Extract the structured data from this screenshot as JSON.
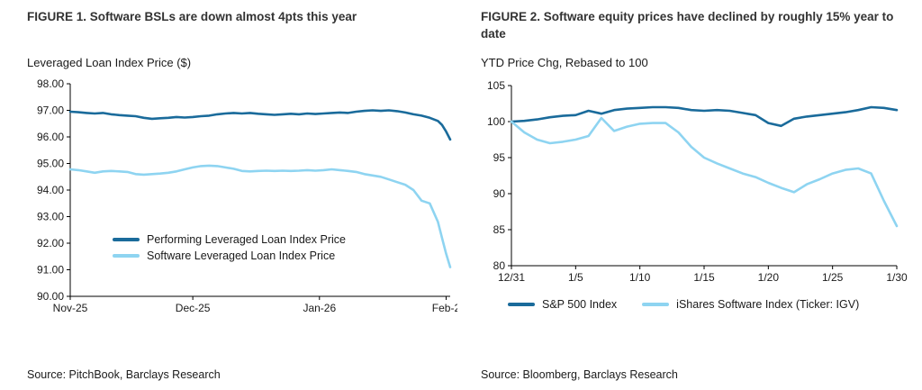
{
  "colors": {
    "dark_blue": "#1a6b9b",
    "light_blue": "#8ed4f1",
    "axis": "#000000",
    "text": "#1a1a1a"
  },
  "figures": [
    {
      "label": "FIGURE 1.",
      "title": "Software BSLs are down almost 4pts this year",
      "axis_title": "Leveraged Loan Index Price ($)",
      "source": "Source: PitchBook, Barclays Research"
    },
    {
      "label": "FIGURE 2.",
      "title": "Software equity prices have declined by roughly 15% year to date",
      "axis_title": "YTD Price Chg, Rebased to 100",
      "source": "Source: Bloomberg, Barclays Research"
    }
  ],
  "chart_data": [
    {
      "type": "line",
      "title": "FIGURE 1. Software BSLs are down almost 4pts this year",
      "ylabel": "Leveraged Loan Index Price ($)",
      "ylim": [
        90,
        98
      ],
      "ytick_step": 1,
      "ytick_decimals": 2,
      "xlim": [
        0,
        93
      ],
      "xticks": [
        {
          "x": 0,
          "label": "Nov-25"
        },
        {
          "x": 30,
          "label": "Dec-25"
        },
        {
          "x": 61,
          "label": "Jan-26"
        },
        {
          "x": 92,
          "label": "Feb-2"
        }
      ],
      "grid": false,
      "legend_position": "inside-lower-left",
      "series": [
        {
          "name": "Performing Leveraged Loan Index Price",
          "color": "dark",
          "x": [
            0,
            2,
            4,
            6,
            8,
            10,
            12,
            14,
            16,
            18,
            20,
            22,
            24,
            26,
            28,
            30,
            32,
            34,
            36,
            38,
            40,
            42,
            44,
            46,
            48,
            50,
            52,
            54,
            56,
            58,
            60,
            62,
            64,
            66,
            68,
            70,
            72,
            74,
            76,
            78,
            80,
            82,
            84,
            86,
            88,
            90,
            91,
            92,
            93
          ],
          "y": [
            96.95,
            96.93,
            96.9,
            96.88,
            96.9,
            96.85,
            96.82,
            96.8,
            96.78,
            96.72,
            96.68,
            96.7,
            96.72,
            96.75,
            96.73,
            96.75,
            96.78,
            96.8,
            96.85,
            96.88,
            96.9,
            96.88,
            96.9,
            96.87,
            96.85,
            96.83,
            96.85,
            96.87,
            96.85,
            96.88,
            96.86,
            96.88,
            96.9,
            96.92,
            96.9,
            96.95,
            96.98,
            97.0,
            96.98,
            97.0,
            96.97,
            96.92,
            96.85,
            96.8,
            96.72,
            96.6,
            96.45,
            96.2,
            95.9
          ]
        },
        {
          "name": "Software Leveraged Loan Index Price",
          "color": "light",
          "x": [
            0,
            2,
            4,
            6,
            8,
            10,
            12,
            14,
            16,
            18,
            20,
            22,
            24,
            26,
            28,
            30,
            32,
            34,
            36,
            38,
            40,
            42,
            44,
            46,
            48,
            50,
            52,
            54,
            56,
            58,
            60,
            62,
            64,
            66,
            68,
            70,
            72,
            74,
            76,
            78,
            80,
            82,
            84,
            86,
            88,
            90,
            91,
            92,
            93
          ],
          "y": [
            94.78,
            94.75,
            94.7,
            94.65,
            94.7,
            94.72,
            94.7,
            94.68,
            94.6,
            94.58,
            94.6,
            94.62,
            94.65,
            94.7,
            94.78,
            94.85,
            94.9,
            94.92,
            94.9,
            94.85,
            94.8,
            94.72,
            94.7,
            94.72,
            94.73,
            94.72,
            94.73,
            94.72,
            94.73,
            94.75,
            94.73,
            94.75,
            94.78,
            94.75,
            94.72,
            94.68,
            94.6,
            94.55,
            94.5,
            94.4,
            94.3,
            94.2,
            94.0,
            93.6,
            93.5,
            92.8,
            92.2,
            91.6,
            91.1
          ]
        }
      ]
    },
    {
      "type": "line",
      "title": "FIGURE 2. Software equity prices have declined by roughly 15% year to date",
      "ylabel": "YTD Price Chg, Rebased to 100",
      "ylim": [
        80,
        105
      ],
      "ytick_step": 5,
      "ytick_decimals": 0,
      "xlim": [
        0,
        30
      ],
      "xticks": [
        {
          "x": 0,
          "label": "12/31"
        },
        {
          "x": 5,
          "label": "1/5"
        },
        {
          "x": 10,
          "label": "1/10"
        },
        {
          "x": 15,
          "label": "1/15"
        },
        {
          "x": 20,
          "label": "1/20"
        },
        {
          "x": 25,
          "label": "1/25"
        },
        {
          "x": 30,
          "label": "1/30"
        }
      ],
      "grid": false,
      "legend_position": "below",
      "series": [
        {
          "name": "S&P 500 Index",
          "color": "dark",
          "x": [
            0,
            1,
            2,
            3,
            4,
            5,
            6,
            7,
            8,
            9,
            10,
            11,
            12,
            13,
            14,
            15,
            16,
            17,
            18,
            19,
            20,
            21,
            22,
            23,
            24,
            25,
            26,
            27,
            28,
            29,
            30
          ],
          "y": [
            100.0,
            100.1,
            100.3,
            100.6,
            100.8,
            100.9,
            101.5,
            101.1,
            101.6,
            101.8,
            101.9,
            102.0,
            102.0,
            101.9,
            101.6,
            101.5,
            101.6,
            101.5,
            101.2,
            100.9,
            99.8,
            99.4,
            100.4,
            100.7,
            100.9,
            101.1,
            101.3,
            101.6,
            102.0,
            101.9,
            101.6
          ]
        },
        {
          "name": "iShares Software Index (Ticker: IGV)",
          "color": "light",
          "x": [
            0,
            1,
            2,
            3,
            4,
            5,
            6,
            7,
            8,
            9,
            10,
            11,
            12,
            13,
            14,
            15,
            16,
            17,
            18,
            19,
            20,
            21,
            22,
            23,
            24,
            25,
            26,
            27,
            28,
            29,
            30
          ],
          "y": [
            100.0,
            98.5,
            97.5,
            97.0,
            97.2,
            97.5,
            98.0,
            100.5,
            98.7,
            99.3,
            99.7,
            99.8,
            99.8,
            98.5,
            96.5,
            95.0,
            94.2,
            93.5,
            92.8,
            92.3,
            91.5,
            90.8,
            90.2,
            91.3,
            92.0,
            92.8,
            93.3,
            93.5,
            92.8,
            89.0,
            85.5
          ]
        }
      ]
    }
  ]
}
